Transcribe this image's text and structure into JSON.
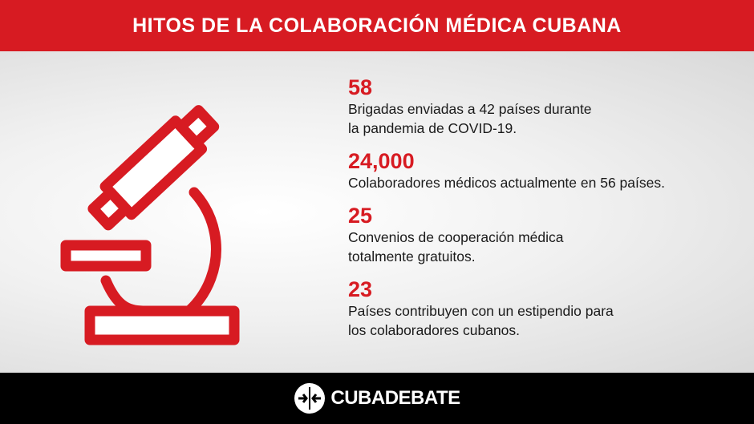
{
  "header": {
    "title": "HITOS DE LA COLABORACIÓN MÉDICA CUBANA"
  },
  "illustration": {
    "icon": "microscope-icon",
    "color": "#d71b22"
  },
  "stats": [
    {
      "number": "58",
      "description": "Brigadas enviadas a 42 países durante\nla pandemia de COVID-19."
    },
    {
      "number": "24,000",
      "description": "Colaboradores médicos actualmente en 56 países."
    },
    {
      "number": "25",
      "description": "Convenios de cooperación médica\ntotalmente gratuitos."
    },
    {
      "number": "23",
      "description": "Países contribuyen con un estipendio para\nlos colaboradores cubanos."
    }
  ],
  "footer": {
    "brand": "CUBADEBATE",
    "logo_icon": "cubadebate-logo-icon"
  },
  "colors": {
    "accent": "#d71b22",
    "footer": "#000000",
    "text": "#1a1a1a"
  }
}
